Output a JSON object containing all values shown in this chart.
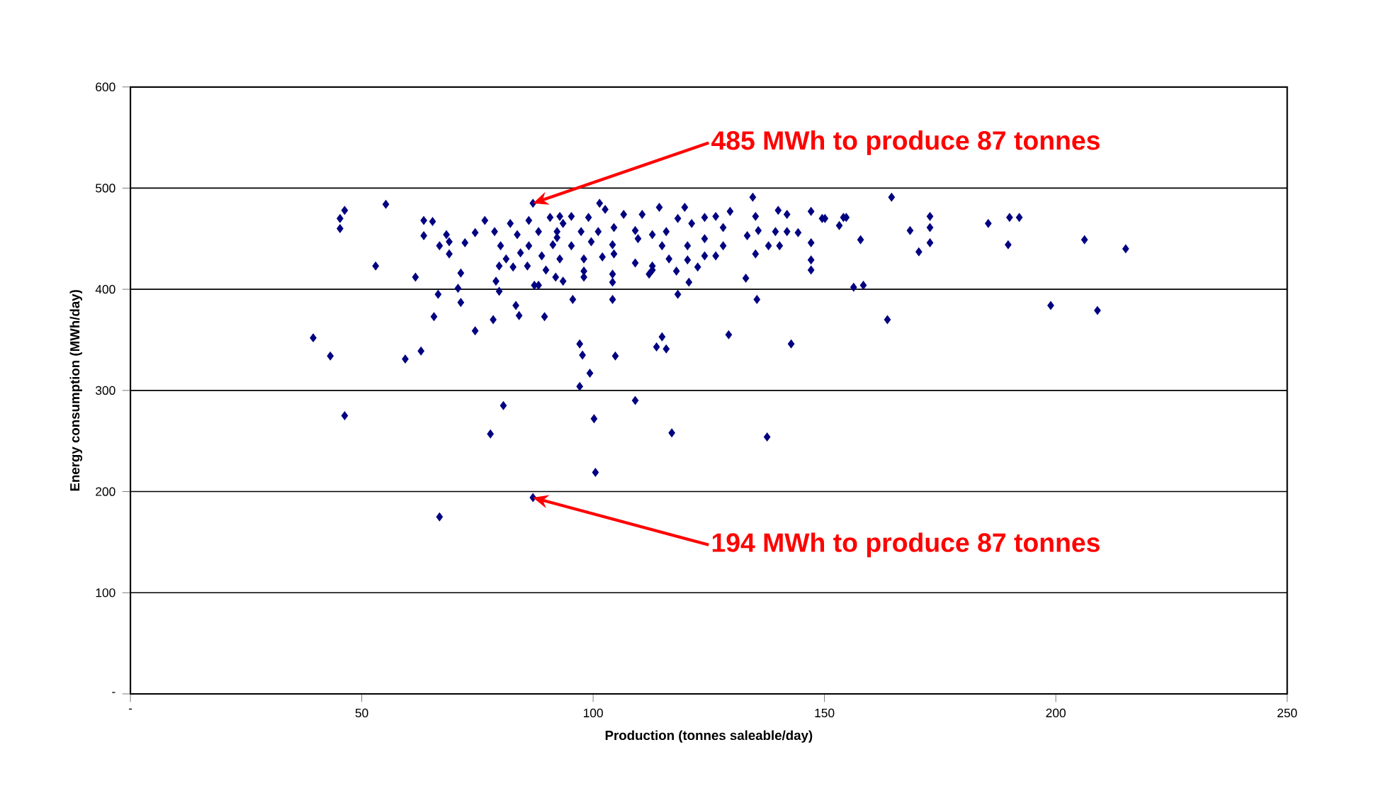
{
  "chart_data": {
    "type": "scatter",
    "xlabel": "Production (tonnes saleable/day)",
    "ylabel": "Energy consumption (MWh/day)",
    "xlim": [
      0,
      250
    ],
    "ylim": [
      0,
      600
    ],
    "xticks": [
      {
        "value": 0,
        "label": "-"
      },
      50,
      100,
      150,
      200,
      250
    ],
    "yticks": [
      {
        "value": 0,
        "label": "-"
      },
      100,
      200,
      300,
      400,
      500,
      600
    ],
    "grid": "y",
    "marker": "diamond",
    "annotations": [
      {
        "text": "485 MWh to produce 87 tonnes",
        "x": 87,
        "y": 485
      },
      {
        "text": "194 MWh to produce 87 tonnes",
        "x": 87,
        "y": 194
      }
    ],
    "series": [
      {
        "color": "#000080",
        "x": [
          39.5,
          43.2,
          46.3,
          46.3,
          45.3,
          45.3,
          55.2,
          53.0,
          63.4,
          65.3,
          63.4,
          66.8,
          68.3,
          68.9,
          68.9,
          72.3,
          74.5,
          76.6,
          61.6,
          71.4,
          70.8,
          66.5,
          71.4,
          65.6,
          74.5,
          78.4,
          83.3,
          84.0,
          89.5,
          62.8,
          87,
          78.7,
          80.0,
          82.1,
          83.6,
          86.1,
          86.1,
          88.2,
          90.7,
          92.2,
          93.5,
          79.7,
          82.7,
          85.8,
          88.9,
          89.8,
          91.9,
          79.0,
          79.7,
          87.3,
          88.2,
          81.2,
          84.3,
          134.5,
          114.3,
          119.8,
          101.4,
          102.6,
          92.8,
          95.3,
          99.0,
          106.6,
          110.6,
          118.3,
          124.1,
          126.5,
          129.6,
          135.1,
          140.0,
          141.9,
          147.1,
          149.5,
          92.2,
          97.4,
          101.1,
          104.5,
          109.1,
          112.8,
          115.8,
          121.3,
          124.1,
          128.1,
          133.3,
          135.7,
          139.4,
          141.9,
          144.3,
          91.3,
          95.3,
          99.6,
          104.2,
          109.7,
          114.9,
          120.4,
          128.1,
          137.9,
          140.3,
          147.1,
          92.8,
          98.0,
          102.0,
          104.5,
          109.1,
          112.8,
          116.4,
          120.4,
          124.1,
          126.5,
          135.1,
          147.1,
          98.0,
          104.2,
          112.1,
          118.0,
          122.6,
          147.1,
          93.5,
          98.0,
          104.2,
          112.8,
          120.7,
          133.0,
          118.3,
          95.6,
          104.2,
          135.4,
          97.1,
          114.9,
          113.7,
          115.8,
          129.3,
          142.8,
          104.8,
          97.7,
          164.5,
          150.1,
          153.2,
          154.1,
          154.7,
          157.8,
          168.5,
          170.4,
          172.8,
          172.8,
          172.8,
          185.4,
          190.0,
          192.1,
          189.7,
          206.2,
          215.1,
          156.3,
          158.4,
          163.6,
          198.9,
          209.0,
          99.3,
          97.1,
          80.6,
          77.8,
          100.2,
          109.1,
          117.0,
          137.6,
          100.5,
          87,
          66.8,
          59.4
        ],
        "values": [
          352,
          334,
          275,
          478,
          470,
          460,
          484,
          423,
          468,
          467,
          453,
          443,
          454,
          447,
          435,
          446,
          456,
          468,
          412,
          416,
          401,
          395,
          387,
          373,
          359,
          370,
          384,
          374,
          373,
          339,
          485,
          457,
          443,
          465,
          454,
          468,
          443,
          457,
          471,
          451,
          465,
          423,
          422,
          423,
          433,
          419,
          412,
          408,
          398,
          404,
          404,
          430,
          436,
          491,
          481,
          481,
          485,
          479,
          472,
          472,
          471,
          474,
          474,
          470,
          471,
          472,
          477,
          472,
          478,
          474,
          477,
          470,
          457,
          457,
          457,
          461,
          458,
          454,
          457,
          465,
          450,
          461,
          453,
          458,
          457,
          457,
          456,
          444,
          443,
          447,
          444,
          450,
          443,
          443,
          443,
          443,
          443,
          446,
          430,
          430,
          432,
          435,
          426,
          423,
          430,
          429,
          433,
          433,
          435,
          429,
          418,
          415,
          415,
          418,
          422,
          419,
          408,
          412,
          407,
          419,
          407,
          411,
          395,
          390,
          390,
          390,
          346,
          353,
          343,
          341,
          355,
          346,
          334,
          335,
          491,
          470,
          463,
          471,
          471,
          449,
          458,
          437,
          472,
          461,
          446,
          465,
          471,
          471,
          444,
          449,
          440,
          402,
          404,
          370,
          384,
          379,
          317,
          304,
          285,
          257,
          272,
          290,
          258,
          254,
          219,
          194,
          175,
          331
        ]
      }
    ]
  }
}
